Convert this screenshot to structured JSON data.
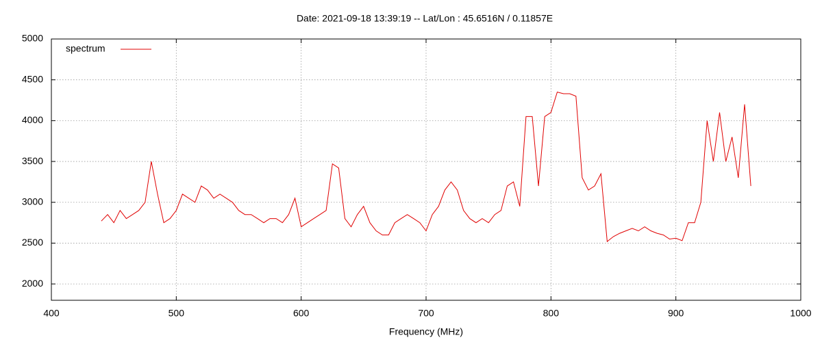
{
  "chart_data": {
    "type": "line",
    "title": "Date: 2021-09-18 13:39:19  --  Lat/Lon : 45.6516N / 0.11857E",
    "x_label": "Frequency (MHz)",
    "x": [
      440,
      445,
      450,
      455,
      460,
      465,
      470,
      475,
      480,
      485,
      490,
      495,
      500,
      505,
      510,
      515,
      520,
      525,
      530,
      535,
      540,
      545,
      550,
      555,
      560,
      565,
      570,
      575,
      580,
      585,
      590,
      595,
      600,
      605,
      610,
      615,
      620,
      625,
      630,
      635,
      640,
      645,
      650,
      655,
      660,
      665,
      670,
      675,
      680,
      685,
      690,
      695,
      700,
      705,
      710,
      715,
      720,
      725,
      730,
      735,
      740,
      745,
      750,
      755,
      760,
      765,
      770,
      775,
      780,
      785,
      790,
      795,
      800,
      805,
      810,
      815,
      820,
      825,
      830,
      835,
      840,
      845,
      850,
      855,
      860,
      865,
      870,
      875,
      880,
      885,
      890,
      895,
      900,
      905,
      910,
      915,
      920,
      925,
      930,
      935,
      940,
      945,
      950,
      955,
      960
    ],
    "series": [
      {
        "name": "spectrum",
        "color": "#e00000",
        "values": [
          2770,
          2850,
          2750,
          2900,
          2800,
          2850,
          2900,
          3000,
          3500,
          3100,
          2750,
          2800,
          2900,
          3100,
          3050,
          3000,
          3200,
          3150,
          3050,
          3100,
          3050,
          3000,
          2900,
          2850,
          2850,
          2800,
          2750,
          2800,
          2800,
          2750,
          2850,
          3050,
          2700,
          2750,
          2800,
          2850,
          2900,
          3470,
          3420,
          2800,
          2700,
          2850,
          2950,
          2750,
          2650,
          2600,
          2600,
          2750,
          2800,
          2850,
          2800,
          2750,
          2650,
          2850,
          2950,
          3150,
          3250,
          3150,
          2900,
          2800,
          2750,
          2800,
          2750,
          2850,
          2900,
          3200,
          3250,
          2950,
          4050,
          4050,
          3200,
          4050,
          4100,
          4350,
          4330,
          4330,
          4300,
          3300,
          3150,
          3200,
          3350,
          2520,
          2580,
          2620,
          2650,
          2680,
          2650,
          2700,
          2650,
          2620,
          2600,
          2550,
          2560,
          2530,
          2750,
          2750,
          3000,
          4000,
          3500,
          4100,
          3500,
          3800,
          3300,
          4200,
          3200
        ]
      }
    ],
    "xlim": [
      400,
      1000
    ],
    "xticks": [
      400,
      500,
      600,
      700,
      800,
      900,
      1000
    ],
    "ylim": [
      1800,
      5000
    ],
    "yticks": [
      2000,
      2500,
      3000,
      3500,
      4000,
      4500,
      5000
    ],
    "grid": true,
    "legend": "top-left"
  }
}
